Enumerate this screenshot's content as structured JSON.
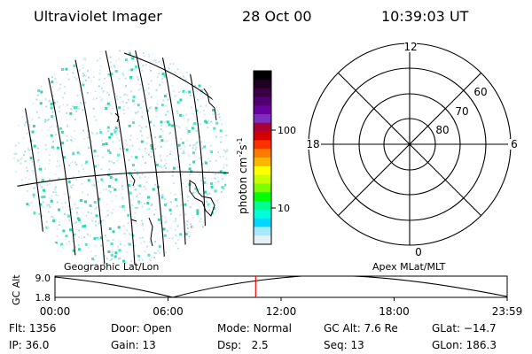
{
  "header": {
    "instrument": "Ultraviolet Imager",
    "date": "28 Oct 00",
    "time": "10:39:03 UT"
  },
  "colorbar": {
    "unit_label": "photon cm",
    "unit_exp1": "-2",
    "unit_mid": "s",
    "unit_exp2": "-1",
    "ticks": [
      "100",
      "10"
    ],
    "colors": [
      "#000000",
      "#200020",
      "#3a0044",
      "#500070",
      "#6a00a0",
      "#7a30c0",
      "#aa0033",
      "#d40000",
      "#ff3000",
      "#ff7a00",
      "#ffb400",
      "#ffff00",
      "#c8ff00",
      "#7cff00",
      "#00ff00",
      "#00ff90",
      "#00ffd8",
      "#00d8ff",
      "#a8e8ff",
      "#e4f0f4"
    ]
  },
  "polar": {
    "clock_labels": {
      "top": "12",
      "left": "18",
      "right": "6",
      "bottom": "0"
    },
    "lat_labels": [
      "60",
      "70",
      "80"
    ]
  },
  "projection": {
    "left_label": "Geographic Lat/Lon",
    "right_label": "Apex MLat/MLT"
  },
  "altitude_panel": {
    "axis_label": "GC Alt",
    "ticks": [
      "9.0",
      "1.8"
    ],
    "time_ticks": [
      "00:00",
      "06:00",
      "12:00",
      "18:00",
      "23:59"
    ],
    "current_marker_hours": 10.65
  },
  "status": {
    "flt_label": "Flt:",
    "flt": "1356",
    "ip_label": "IP:",
    "ip": "36.0",
    "door_label": "Door:",
    "door": "Open",
    "gain_label": "Gain:",
    "gain": "13",
    "mode_label": "Mode:",
    "mode": "Normal",
    "dsp_label": "Dsp:",
    "dsp": "2.5",
    "gcalt_label": "GC Alt:",
    "gcalt": "7.6 Re",
    "seq_label": "Seq:",
    "seq": "13",
    "glat_label": "GLat:",
    "glat": "−14.7",
    "glon_label": "GLon:",
    "glon": "186.3"
  }
}
